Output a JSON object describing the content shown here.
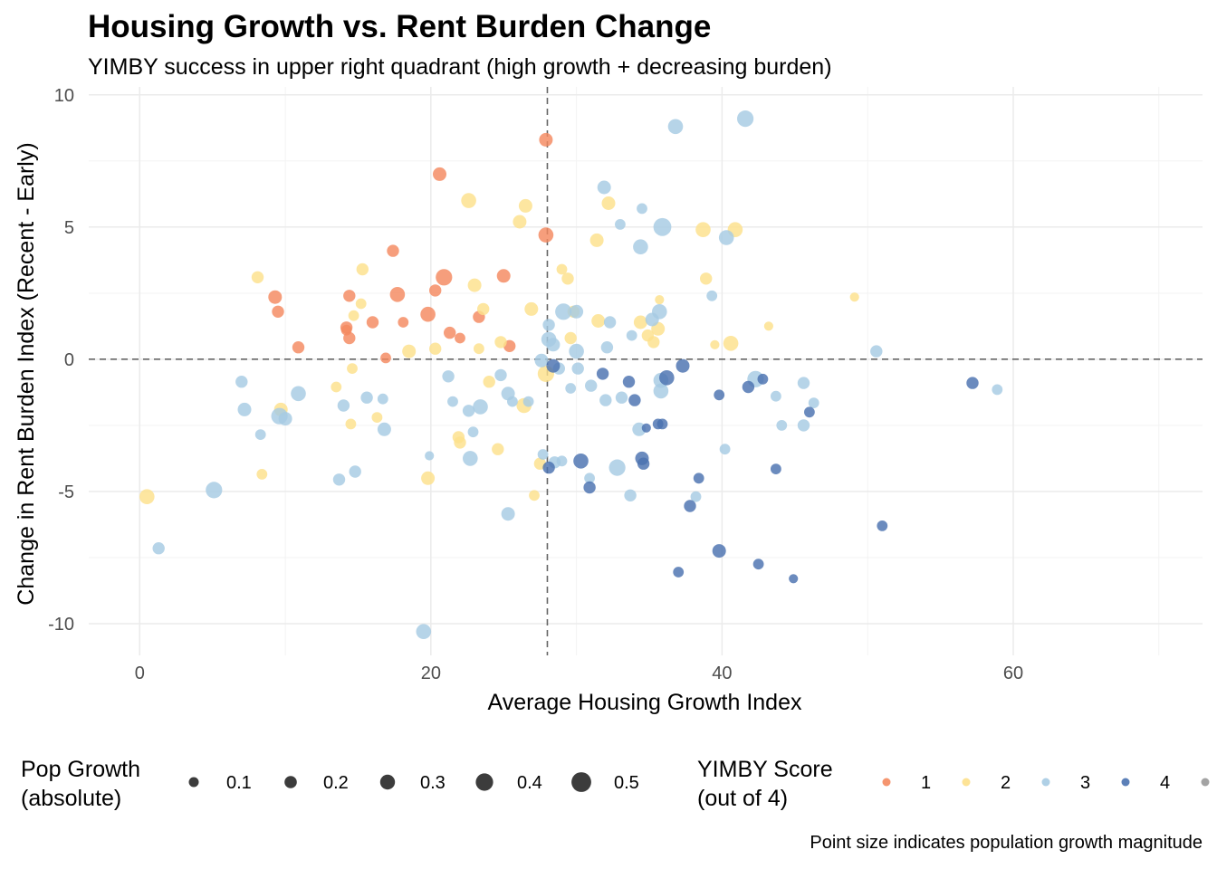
{
  "chart_data": {
    "type": "scatter",
    "title": "Housing Growth vs. Rent Burden Change",
    "subtitle": "YIMBY success in upper right quadrant (high growth + decreasing burden)",
    "xlabel": "Average Housing Growth Index",
    "ylabel": "Change in Rent Burden Index (Recent - Early)",
    "caption": "Point size indicates population growth magnitude",
    "xlim": [
      -3.5,
      73
    ],
    "ylim": [
      -11.2,
      10.3
    ],
    "x_ticks": [
      0,
      20,
      40,
      60
    ],
    "y_ticks": [
      -10,
      -5,
      0,
      5,
      10
    ],
    "x_tick_labels": [
      "0",
      "20",
      "40",
      "60"
    ],
    "y_tick_labels": [
      "-10",
      "-5",
      "0",
      "5",
      "10"
    ],
    "reference_lines": {
      "x": 28,
      "y": 0,
      "style": "dashed"
    },
    "grid": true,
    "legend_position": "bottom",
    "size_legend": {
      "title_line1": "Pop Growth",
      "title_line2": "(absolute)",
      "breaks": [
        0.1,
        0.2,
        0.3,
        0.4,
        0.5
      ],
      "labels": [
        "0.1",
        "0.2",
        "0.3",
        "0.4",
        "0.5"
      ]
    },
    "color_legend": {
      "title_line1": "YIMBY Score",
      "title_line2": "(out of 4)",
      "labels": [
        "1",
        "2",
        "3",
        "4",
        ""
      ],
      "colors": [
        "#f4895f",
        "#fde08b",
        "#a6cbe3",
        "#4a72b0",
        "#999999"
      ]
    },
    "points": [
      {
        "x": 27.9,
        "y": 8.3,
        "s": 0.25,
        "g": 1
      },
      {
        "x": 20.6,
        "y": 7.0,
        "s": 0.25,
        "g": 1
      },
      {
        "x": 27.9,
        "y": 4.7,
        "s": 0.3,
        "g": 1
      },
      {
        "x": 17.4,
        "y": 4.1,
        "s": 0.2,
        "g": 1
      },
      {
        "x": 20.9,
        "y": 3.1,
        "s": 0.35,
        "g": 1
      },
      {
        "x": 25.0,
        "y": 3.15,
        "s": 0.25,
        "g": 1
      },
      {
        "x": 9.3,
        "y": 2.35,
        "s": 0.25,
        "g": 1
      },
      {
        "x": 17.7,
        "y": 2.45,
        "s": 0.3,
        "g": 1
      },
      {
        "x": 14.4,
        "y": 2.4,
        "s": 0.2,
        "g": 1
      },
      {
        "x": 20.3,
        "y": 2.6,
        "s": 0.2,
        "g": 1
      },
      {
        "x": 9.5,
        "y": 1.8,
        "s": 0.2,
        "g": 1
      },
      {
        "x": 14.2,
        "y": 1.2,
        "s": 0.2,
        "g": 1
      },
      {
        "x": 16.0,
        "y": 1.4,
        "s": 0.2,
        "g": 1
      },
      {
        "x": 18.1,
        "y": 1.4,
        "s": 0.15,
        "g": 1
      },
      {
        "x": 19.8,
        "y": 1.7,
        "s": 0.3,
        "g": 1
      },
      {
        "x": 23.3,
        "y": 1.6,
        "s": 0.2,
        "g": 1
      },
      {
        "x": 14.2,
        "y": 1.1,
        "s": 0.15,
        "g": 1
      },
      {
        "x": 21.3,
        "y": 1.0,
        "s": 0.2,
        "g": 1
      },
      {
        "x": 22.0,
        "y": 0.8,
        "s": 0.15,
        "g": 1
      },
      {
        "x": 14.4,
        "y": 0.8,
        "s": 0.2,
        "g": 1
      },
      {
        "x": 10.9,
        "y": 0.45,
        "s": 0.2,
        "g": 1
      },
      {
        "x": 16.9,
        "y": 0.05,
        "s": 0.15,
        "g": 1
      },
      {
        "x": 25.4,
        "y": 0.5,
        "s": 0.2,
        "g": 1
      },
      {
        "x": 22.6,
        "y": 6.0,
        "s": 0.3,
        "g": 2
      },
      {
        "x": 26.5,
        "y": 5.8,
        "s": 0.25,
        "g": 2
      },
      {
        "x": 32.2,
        "y": 5.9,
        "s": 0.25,
        "g": 2
      },
      {
        "x": 26.1,
        "y": 5.2,
        "s": 0.25,
        "g": 2
      },
      {
        "x": 31.4,
        "y": 4.5,
        "s": 0.25,
        "g": 2
      },
      {
        "x": 38.7,
        "y": 4.9,
        "s": 0.3,
        "g": 2
      },
      {
        "x": 40.9,
        "y": 4.9,
        "s": 0.3,
        "g": 2
      },
      {
        "x": 15.3,
        "y": 3.4,
        "s": 0.2,
        "g": 2
      },
      {
        "x": 8.1,
        "y": 3.1,
        "s": 0.2,
        "g": 2
      },
      {
        "x": 29.0,
        "y": 3.4,
        "s": 0.15,
        "g": 2
      },
      {
        "x": 29.4,
        "y": 3.05,
        "s": 0.2,
        "g": 2
      },
      {
        "x": 23.0,
        "y": 2.8,
        "s": 0.25,
        "g": 2
      },
      {
        "x": 38.9,
        "y": 3.05,
        "s": 0.2,
        "g": 2
      },
      {
        "x": 15.2,
        "y": 2.1,
        "s": 0.15,
        "g": 2
      },
      {
        "x": 14.7,
        "y": 1.65,
        "s": 0.15,
        "g": 2
      },
      {
        "x": 23.6,
        "y": 1.9,
        "s": 0.2,
        "g": 2
      },
      {
        "x": 26.9,
        "y": 1.9,
        "s": 0.25,
        "g": 2
      },
      {
        "x": 29.8,
        "y": 1.8,
        "s": 0.2,
        "g": 2
      },
      {
        "x": 35.7,
        "y": 2.25,
        "s": 0.1,
        "g": 2
      },
      {
        "x": 31.5,
        "y": 1.45,
        "s": 0.25,
        "g": 2
      },
      {
        "x": 34.4,
        "y": 1.4,
        "s": 0.25,
        "g": 2
      },
      {
        "x": 35.6,
        "y": 1.15,
        "s": 0.25,
        "g": 2
      },
      {
        "x": 43.2,
        "y": 1.25,
        "s": 0.1,
        "g": 2
      },
      {
        "x": 49.1,
        "y": 2.35,
        "s": 0.1,
        "g": 2
      },
      {
        "x": 34.9,
        "y": 0.9,
        "s": 0.2,
        "g": 2
      },
      {
        "x": 35.3,
        "y": 0.65,
        "s": 0.2,
        "g": 2
      },
      {
        "x": 24.8,
        "y": 0.65,
        "s": 0.2,
        "g": 2
      },
      {
        "x": 40.6,
        "y": 0.6,
        "s": 0.3,
        "g": 2
      },
      {
        "x": 39.5,
        "y": 0.55,
        "s": 0.1,
        "g": 2
      },
      {
        "x": 29.6,
        "y": 0.8,
        "s": 0.2,
        "g": 2
      },
      {
        "x": 18.5,
        "y": 0.3,
        "s": 0.25,
        "g": 2
      },
      {
        "x": 20.3,
        "y": 0.4,
        "s": 0.2,
        "g": 2
      },
      {
        "x": 23.3,
        "y": 0.4,
        "s": 0.15,
        "g": 2
      },
      {
        "x": 14.6,
        "y": -0.35,
        "s": 0.15,
        "g": 2
      },
      {
        "x": 27.9,
        "y": -0.55,
        "s": 0.35,
        "g": 2
      },
      {
        "x": 13.5,
        "y": -1.05,
        "s": 0.15,
        "g": 2
      },
      {
        "x": 24.0,
        "y": -0.85,
        "s": 0.2,
        "g": 2
      },
      {
        "x": 26.4,
        "y": -1.75,
        "s": 0.3,
        "g": 2
      },
      {
        "x": 9.7,
        "y": -1.9,
        "s": 0.25,
        "g": 2
      },
      {
        "x": 16.3,
        "y": -2.2,
        "s": 0.15,
        "g": 2
      },
      {
        "x": 14.5,
        "y": -2.45,
        "s": 0.15,
        "g": 2
      },
      {
        "x": 21.9,
        "y": -2.95,
        "s": 0.2,
        "g": 2
      },
      {
        "x": 22.0,
        "y": -3.15,
        "s": 0.2,
        "g": 2
      },
      {
        "x": 24.6,
        "y": -3.4,
        "s": 0.2,
        "g": 2
      },
      {
        "x": 27.5,
        "y": -3.95,
        "s": 0.2,
        "g": 2
      },
      {
        "x": 8.4,
        "y": -4.35,
        "s": 0.15,
        "g": 2
      },
      {
        "x": 19.8,
        "y": -4.5,
        "s": 0.25,
        "g": 2
      },
      {
        "x": 27.1,
        "y": -5.15,
        "s": 0.15,
        "g": 2
      },
      {
        "x": 0.5,
        "y": -5.2,
        "s": 0.3,
        "g": 2
      },
      {
        "x": 36.8,
        "y": 8.8,
        "s": 0.3,
        "g": 3
      },
      {
        "x": 41.6,
        "y": 9.1,
        "s": 0.35,
        "g": 3
      },
      {
        "x": 31.9,
        "y": 6.5,
        "s": 0.25,
        "g": 3
      },
      {
        "x": 34.5,
        "y": 5.7,
        "s": 0.15,
        "g": 3
      },
      {
        "x": 33.0,
        "y": 5.1,
        "s": 0.15,
        "g": 3
      },
      {
        "x": 35.9,
        "y": 5.0,
        "s": 0.4,
        "g": 3
      },
      {
        "x": 40.3,
        "y": 4.6,
        "s": 0.3,
        "g": 3
      },
      {
        "x": 34.4,
        "y": 4.25,
        "s": 0.3,
        "g": 3
      },
      {
        "x": 39.3,
        "y": 2.4,
        "s": 0.15,
        "g": 3
      },
      {
        "x": 29.1,
        "y": 1.8,
        "s": 0.35,
        "g": 3
      },
      {
        "x": 30.0,
        "y": 1.8,
        "s": 0.25,
        "g": 3
      },
      {
        "x": 35.7,
        "y": 1.8,
        "s": 0.3,
        "g": 3
      },
      {
        "x": 35.2,
        "y": 1.5,
        "s": 0.25,
        "g": 3
      },
      {
        "x": 32.3,
        "y": 1.4,
        "s": 0.2,
        "g": 3
      },
      {
        "x": 28.1,
        "y": 1.3,
        "s": 0.2,
        "g": 3
      },
      {
        "x": 33.8,
        "y": 0.9,
        "s": 0.15,
        "g": 3
      },
      {
        "x": 28.1,
        "y": 0.75,
        "s": 0.3,
        "g": 3
      },
      {
        "x": 28.4,
        "y": 0.55,
        "s": 0.25,
        "g": 3
      },
      {
        "x": 32.1,
        "y": 0.45,
        "s": 0.2,
        "g": 3
      },
      {
        "x": 30.0,
        "y": 0.3,
        "s": 0.3,
        "g": 3
      },
      {
        "x": 50.6,
        "y": 0.3,
        "s": 0.2,
        "g": 3
      },
      {
        "x": 27.6,
        "y": -0.05,
        "s": 0.25,
        "g": 3
      },
      {
        "x": 28.8,
        "y": -0.35,
        "s": 0.2,
        "g": 3
      },
      {
        "x": 30.1,
        "y": -0.35,
        "s": 0.2,
        "g": 3
      },
      {
        "x": 24.8,
        "y": -0.6,
        "s": 0.2,
        "g": 3
      },
      {
        "x": 21.2,
        "y": -0.65,
        "s": 0.2,
        "g": 3
      },
      {
        "x": 35.8,
        "y": -0.8,
        "s": 0.3,
        "g": 3
      },
      {
        "x": 42.3,
        "y": -0.75,
        "s": 0.35,
        "g": 3
      },
      {
        "x": 7.0,
        "y": -0.85,
        "s": 0.2,
        "g": 3
      },
      {
        "x": 31.0,
        "y": -1.0,
        "s": 0.2,
        "g": 3
      },
      {
        "x": 29.6,
        "y": -1.1,
        "s": 0.15,
        "g": 3
      },
      {
        "x": 45.6,
        "y": -0.9,
        "s": 0.2,
        "g": 3
      },
      {
        "x": 35.8,
        "y": -1.2,
        "s": 0.3,
        "g": 3
      },
      {
        "x": 10.9,
        "y": -1.3,
        "s": 0.3,
        "g": 3
      },
      {
        "x": 25.3,
        "y": -1.3,
        "s": 0.25,
        "g": 3
      },
      {
        "x": 15.6,
        "y": -1.45,
        "s": 0.2,
        "g": 3
      },
      {
        "x": 16.7,
        "y": -1.5,
        "s": 0.15,
        "g": 3
      },
      {
        "x": 32.0,
        "y": -1.55,
        "s": 0.2,
        "g": 3
      },
      {
        "x": 33.1,
        "y": -1.45,
        "s": 0.2,
        "g": 3
      },
      {
        "x": 43.7,
        "y": -1.4,
        "s": 0.15,
        "g": 3
      },
      {
        "x": 46.3,
        "y": -1.65,
        "s": 0.15,
        "g": 3
      },
      {
        "x": 21.5,
        "y": -1.6,
        "s": 0.15,
        "g": 3
      },
      {
        "x": 25.6,
        "y": -1.6,
        "s": 0.15,
        "g": 3
      },
      {
        "x": 26.7,
        "y": -1.6,
        "s": 0.15,
        "g": 3
      },
      {
        "x": 14.0,
        "y": -1.75,
        "s": 0.2,
        "g": 3
      },
      {
        "x": 7.2,
        "y": -1.9,
        "s": 0.25,
        "g": 3
      },
      {
        "x": 22.6,
        "y": -1.95,
        "s": 0.2,
        "g": 3
      },
      {
        "x": 23.4,
        "y": -1.8,
        "s": 0.3,
        "g": 3
      },
      {
        "x": 9.6,
        "y": -2.15,
        "s": 0.35,
        "g": 3
      },
      {
        "x": 10.0,
        "y": -2.25,
        "s": 0.25,
        "g": 3
      },
      {
        "x": 16.8,
        "y": -2.65,
        "s": 0.25,
        "g": 3
      },
      {
        "x": 22.9,
        "y": -2.75,
        "s": 0.15,
        "g": 3
      },
      {
        "x": 34.3,
        "y": -2.65,
        "s": 0.25,
        "g": 3
      },
      {
        "x": 44.1,
        "y": -2.5,
        "s": 0.15,
        "g": 3
      },
      {
        "x": 45.6,
        "y": -2.5,
        "s": 0.2,
        "g": 3
      },
      {
        "x": 8.3,
        "y": -2.85,
        "s": 0.15,
        "g": 3
      },
      {
        "x": 40.2,
        "y": -3.4,
        "s": 0.15,
        "g": 3
      },
      {
        "x": 19.9,
        "y": -3.65,
        "s": 0.1,
        "g": 3
      },
      {
        "x": 27.7,
        "y": -3.6,
        "s": 0.15,
        "g": 3
      },
      {
        "x": 22.7,
        "y": -3.75,
        "s": 0.3,
        "g": 3
      },
      {
        "x": 28.5,
        "y": -3.9,
        "s": 0.2,
        "g": 3
      },
      {
        "x": 29.0,
        "y": -3.85,
        "s": 0.15,
        "g": 3
      },
      {
        "x": 32.8,
        "y": -4.1,
        "s": 0.35,
        "g": 3
      },
      {
        "x": 14.8,
        "y": -4.25,
        "s": 0.2,
        "g": 3
      },
      {
        "x": 13.7,
        "y": -4.55,
        "s": 0.2,
        "g": 3
      },
      {
        "x": 30.9,
        "y": -4.5,
        "s": 0.15,
        "g": 3
      },
      {
        "x": 5.1,
        "y": -4.95,
        "s": 0.35,
        "g": 3
      },
      {
        "x": 33.7,
        "y": -5.15,
        "s": 0.2,
        "g": 3
      },
      {
        "x": 38.2,
        "y": -5.2,
        "s": 0.15,
        "g": 3
      },
      {
        "x": 25.3,
        "y": -5.85,
        "s": 0.25,
        "g": 3
      },
      {
        "x": 1.3,
        "y": -7.15,
        "s": 0.2,
        "g": 3
      },
      {
        "x": 19.5,
        "y": -10.3,
        "s": 0.3,
        "g": 3
      },
      {
        "x": 58.9,
        "y": -1.15,
        "s": 0.15,
        "g": 3
      },
      {
        "x": 28.4,
        "y": -0.25,
        "s": 0.25,
        "g": 4
      },
      {
        "x": 37.3,
        "y": -0.25,
        "s": 0.25,
        "g": 4
      },
      {
        "x": 31.8,
        "y": -0.55,
        "s": 0.2,
        "g": 4
      },
      {
        "x": 36.2,
        "y": -0.7,
        "s": 0.3,
        "g": 4
      },
      {
        "x": 41.8,
        "y": -1.05,
        "s": 0.2,
        "g": 4
      },
      {
        "x": 42.8,
        "y": -0.75,
        "s": 0.15,
        "g": 4
      },
      {
        "x": 33.6,
        "y": -0.85,
        "s": 0.2,
        "g": 4
      },
      {
        "x": 57.2,
        "y": -0.9,
        "s": 0.2,
        "g": 4
      },
      {
        "x": 39.8,
        "y": -1.35,
        "s": 0.15,
        "g": 4
      },
      {
        "x": 34.0,
        "y": -1.55,
        "s": 0.2,
        "g": 4
      },
      {
        "x": 46.0,
        "y": -2.0,
        "s": 0.15,
        "g": 4
      },
      {
        "x": 35.6,
        "y": -2.45,
        "s": 0.15,
        "g": 4
      },
      {
        "x": 35.9,
        "y": -2.45,
        "s": 0.15,
        "g": 4
      },
      {
        "x": 34.8,
        "y": -2.6,
        "s": 0.1,
        "g": 4
      },
      {
        "x": 34.5,
        "y": -3.75,
        "s": 0.25,
        "g": 4
      },
      {
        "x": 34.6,
        "y": -3.95,
        "s": 0.2,
        "g": 4
      },
      {
        "x": 30.3,
        "y": -3.85,
        "s": 0.3,
        "g": 4
      },
      {
        "x": 28.1,
        "y": -4.1,
        "s": 0.2,
        "g": 4
      },
      {
        "x": 43.7,
        "y": -4.15,
        "s": 0.15,
        "g": 4
      },
      {
        "x": 38.4,
        "y": -4.5,
        "s": 0.15,
        "g": 4
      },
      {
        "x": 30.9,
        "y": -4.85,
        "s": 0.2,
        "g": 4
      },
      {
        "x": 37.8,
        "y": -5.55,
        "s": 0.2,
        "g": 4
      },
      {
        "x": 51.0,
        "y": -6.3,
        "s": 0.15,
        "g": 4
      },
      {
        "x": 39.8,
        "y": -7.25,
        "s": 0.25,
        "g": 4
      },
      {
        "x": 42.5,
        "y": -7.75,
        "s": 0.15,
        "g": 4
      },
      {
        "x": 37.0,
        "y": -8.05,
        "s": 0.15,
        "g": 4
      },
      {
        "x": 44.9,
        "y": -8.3,
        "s": 0.1,
        "g": 4
      }
    ]
  }
}
